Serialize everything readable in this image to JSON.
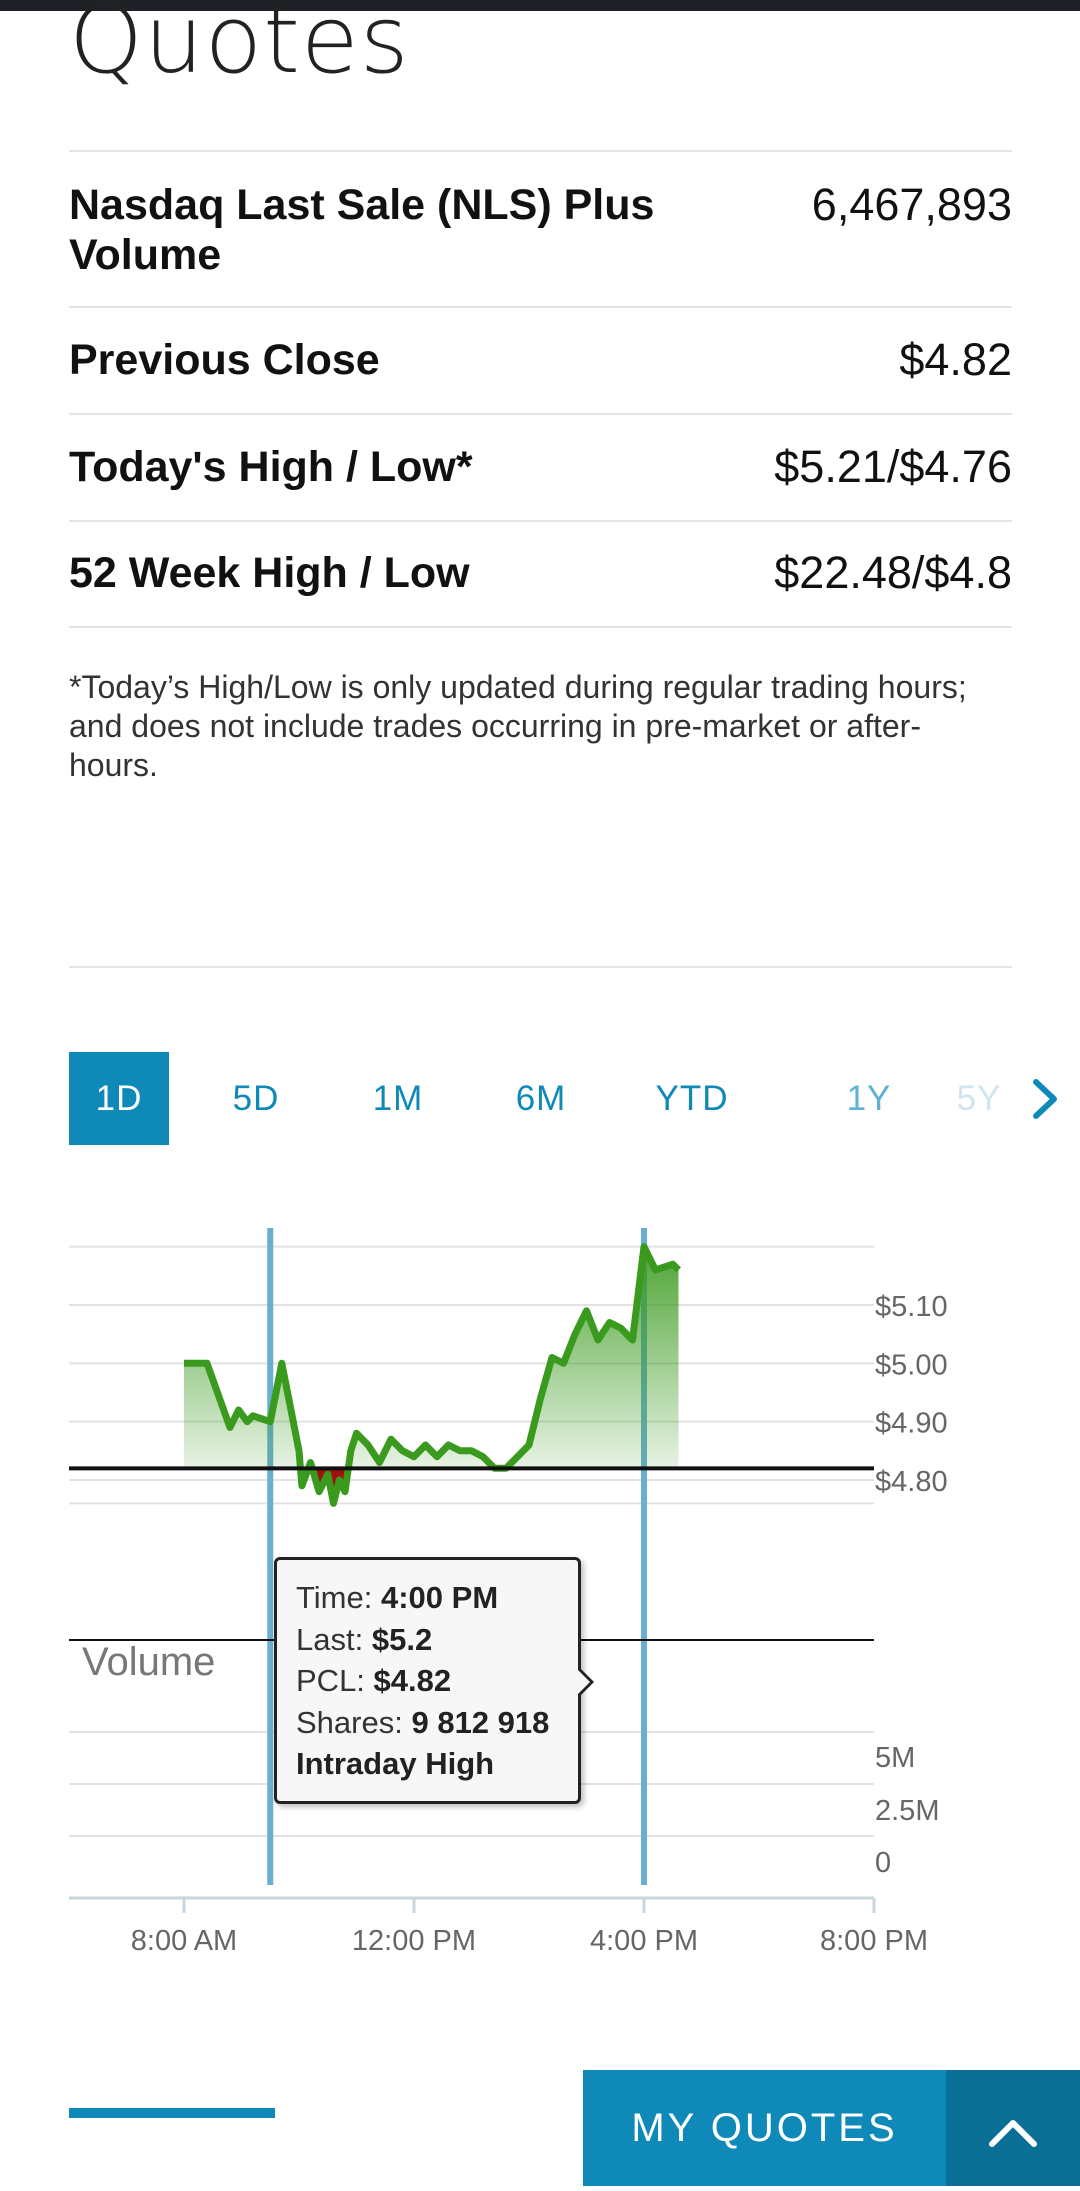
{
  "page": {
    "title": "Quotes"
  },
  "quote_rows": [
    {
      "label": "Nasdaq Last Sale (NLS) Plus Volume",
      "label_line1": "Nasdaq Last Sale (NLS) Plus",
      "label_line2": "Volume",
      "value": "6,467,893"
    },
    {
      "label": "Previous Close",
      "value": "$4.82"
    },
    {
      "label": "Today's High / Low*",
      "value": "$5.21/$4.76"
    },
    {
      "label": "52 Week High / Low",
      "value": "$22.48/$4.8"
    }
  ],
  "footnote": "*Today’s High/Low is only updated during regular trading hours; and does not include trades occurring in pre-market or after-hours.",
  "range_tabs": [
    {
      "label": "1D",
      "active": true
    },
    {
      "label": "5D",
      "active": false
    },
    {
      "label": "1M",
      "active": false
    },
    {
      "label": "6M",
      "active": false
    },
    {
      "label": "YTD",
      "active": false
    },
    {
      "label": "1Y",
      "active": false
    },
    {
      "label": "5Y",
      "active": false
    }
  ],
  "chart": {
    "price_ticks": [
      "$5.10",
      "$5.00",
      "$4.90",
      "$4.80"
    ],
    "volume_label": "Volume",
    "volume_ticks": [
      "5M",
      "2.5M",
      "0"
    ],
    "time_ticks": [
      "8:00 AM",
      "12:00 PM",
      "4:00 PM",
      "8:00 PM"
    ]
  },
  "chart_data": {
    "type": "area",
    "title": "",
    "xlabel": "",
    "ylabel": "",
    "x_ticks": [
      "8:00 AM",
      "12:00 PM",
      "4:00 PM",
      "8:00 PM"
    ],
    "y_ticks": [
      "$4.80",
      "$4.90",
      "$5.00",
      "$5.10"
    ],
    "ylim": [
      4.74,
      5.22
    ],
    "reference_line": {
      "label": "Previous Close",
      "value": 4.82
    },
    "colors": {
      "above": "#3a9a1e",
      "below": "#a01010"
    },
    "series": [
      {
        "x": [
          8.0,
          8.4,
          8.8,
          8.95,
          9.1,
          9.2,
          9.5,
          9.7,
          10.0,
          10.05,
          10.2,
          10.35,
          10.5,
          10.6,
          10.7,
          10.8,
          10.9,
          11.0,
          11.2,
          11.4,
          11.6,
          11.8,
          12.0,
          12.2,
          12.4,
          12.6,
          12.8,
          13.0,
          13.2,
          13.4,
          13.6,
          13.8,
          14.0,
          14.2,
          14.4,
          14.6,
          14.8,
          15.0,
          15.2,
          15.4,
          15.6,
          15.8,
          16.0,
          16.2,
          16.5,
          16.6
        ],
        "y": [
          5.0,
          5.0,
          4.89,
          4.92,
          4.9,
          4.91,
          4.9,
          5.0,
          4.85,
          4.79,
          4.83,
          4.78,
          4.81,
          4.76,
          4.8,
          4.78,
          4.85,
          4.88,
          4.86,
          4.83,
          4.87,
          4.85,
          4.84,
          4.86,
          4.84,
          4.86,
          4.85,
          4.85,
          4.84,
          4.82,
          4.82,
          4.84,
          4.86,
          4.94,
          5.01,
          5.0,
          5.05,
          5.09,
          5.04,
          5.07,
          5.06,
          5.04,
          5.2,
          5.16,
          5.17,
          5.16
        ]
      }
    ],
    "volume_ylim": [
      0,
      5000000
    ],
    "crosshair_times": [
      9.5,
      16.0
    ]
  },
  "tooltip": {
    "time_label": "Time:",
    "time_value": "4:00 PM",
    "last_label": "Last:",
    "last_value": "$5.2",
    "pcl_label": "PCL:",
    "pcl_value": "$4.82",
    "shares_label": "Shares:",
    "shares_value": "9 812 918",
    "note": "Intraday High"
  },
  "footer": {
    "my_quotes_label": "MY QUOTES"
  },
  "icons": {
    "tabs_next": "chevron-right-icon",
    "collapse": "chevron-up-icon"
  },
  "colors": {
    "accent": "#0f8ab8",
    "accent_dark": "#0a6f95",
    "positive": "#3a9a1e",
    "negative": "#a01010"
  }
}
